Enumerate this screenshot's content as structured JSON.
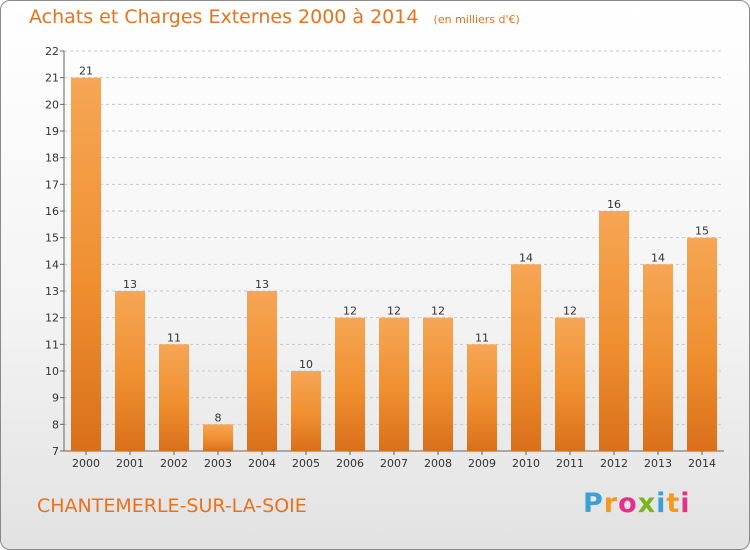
{
  "chart_data": {
    "type": "bar",
    "title": "Achats et Charges Externes 2000 à 2014",
    "unit": "(en milliers d'€)",
    "categories": [
      "2000",
      "2001",
      "2002",
      "2003",
      "2004",
      "2005",
      "2006",
      "2007",
      "2008",
      "2009",
      "2010",
      "2011",
      "2012",
      "2013",
      "2014"
    ],
    "values": [
      21,
      13,
      11,
      8,
      13,
      10,
      12,
      12,
      12,
      11,
      14,
      12,
      16,
      14,
      15
    ],
    "yticks": [
      7,
      8,
      9,
      10,
      11,
      12,
      13,
      14,
      15,
      16,
      17,
      18,
      19,
      20,
      21,
      22
    ],
    "ylim": [
      7,
      22
    ],
    "grid": "horizontal-dashed",
    "bar_color": "#f0902e"
  },
  "footer": {
    "commune": "CHANTEMERLE-SUR-LA-SOIE"
  },
  "logo": {
    "text": "Proxiti",
    "letters": [
      "P",
      "r",
      "o",
      "x",
      "i",
      "t",
      "i"
    ],
    "colors": [
      "#3aa0d8",
      "#f39a1e",
      "#e8308a",
      "#7ab51d",
      "#3aa0d8",
      "#f39a1e",
      "#e8308a"
    ]
  }
}
